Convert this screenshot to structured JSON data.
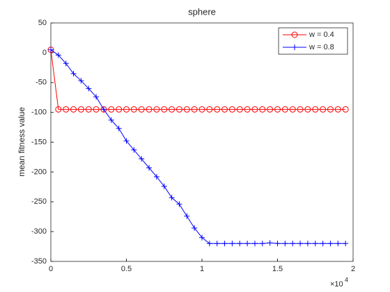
{
  "chart_data": {
    "type": "line",
    "title": "sphere",
    "y_label": "mean fitness value",
    "x_exponent_base": "×10",
    "x_exponent_power": "4",
    "x": [
      0,
      500,
      1000,
      1500,
      2000,
      2500,
      3000,
      3500,
      4000,
      4500,
      5000,
      5500,
      6000,
      6500,
      7000,
      7500,
      8000,
      8500,
      9000,
      9500,
      10000,
      10500,
      11000,
      11500,
      12000,
      12500,
      13000,
      13500,
      14000,
      14500,
      15000,
      15500,
      16000,
      16500,
      17000,
      17500,
      18000,
      18500,
      19000,
      19500
    ],
    "series": [
      {
        "name": "w = 0.4",
        "color": "#ff0000",
        "marker": "circle",
        "values": [
          5,
          -95,
          -95,
          -95,
          -95,
          -95,
          -95,
          -95,
          -95,
          -95,
          -95,
          -95,
          -95,
          -95,
          -95,
          -95,
          -95,
          -95,
          -95,
          -95,
          -95,
          -95,
          -95,
          -95,
          -95,
          -95,
          -95,
          -95,
          -95,
          -95,
          -95,
          -95,
          -95,
          -95,
          -95,
          -95,
          -95,
          -95,
          -95,
          -95
        ]
      },
      {
        "name": "w = 0.8",
        "color": "#0000ff",
        "marker": "plus",
        "values": [
          5,
          -4,
          -18,
          -35,
          -47,
          -60,
          -74,
          -95,
          -113,
          -127,
          -148,
          -163,
          -178,
          -193,
          -208,
          -224,
          -243,
          -254,
          -274,
          -294,
          -310,
          -320,
          -320,
          -320,
          -320,
          -320,
          -320,
          -320,
          -320,
          -319,
          -320,
          -320,
          -320,
          -320,
          -320,
          -320,
          -320,
          -320,
          -320,
          -320
        ]
      }
    ],
    "xlim": [
      0,
      20000
    ],
    "xticks": [
      0,
      {
        "value": 5000,
        "label": "0.5"
      },
      {
        "value": 10000,
        "label": "1"
      },
      {
        "value": 15000,
        "label": "1.5"
      },
      {
        "value": 20000,
        "label": "2"
      }
    ],
    "ylim": [
      -350,
      50
    ],
    "yticks": [
      -350,
      -300,
      -250,
      -200,
      -150,
      -100,
      -50,
      0,
      50
    ],
    "grid": false,
    "legend": "top-right"
  }
}
